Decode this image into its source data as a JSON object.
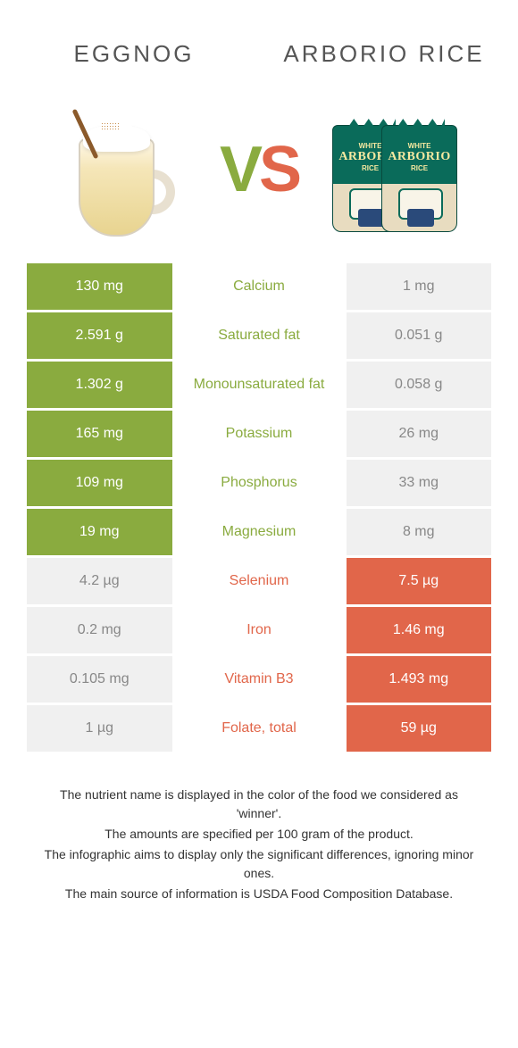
{
  "header": {
    "left_title": "Eggnog",
    "right_title": "Arborio rice",
    "vs_v": "V",
    "vs_s": "S"
  },
  "colors": {
    "left_winner": "#8aab3f",
    "right_winner": "#e1664a",
    "loser_bg": "#f0f0f0",
    "loser_text": "#888888"
  },
  "rice_bag": {
    "line1": "WHITE",
    "line2": "ARBORIO",
    "line3": "RICE"
  },
  "rows": [
    {
      "nutrient": "Calcium",
      "left": "130 mg",
      "right": "1 mg",
      "winner": "left"
    },
    {
      "nutrient": "Saturated fat",
      "left": "2.591 g",
      "right": "0.051 g",
      "winner": "left"
    },
    {
      "nutrient": "Monounsaturated fat",
      "left": "1.302 g",
      "right": "0.058 g",
      "winner": "left"
    },
    {
      "nutrient": "Potassium",
      "left": "165 mg",
      "right": "26 mg",
      "winner": "left"
    },
    {
      "nutrient": "Phosphorus",
      "left": "109 mg",
      "right": "33 mg",
      "winner": "left"
    },
    {
      "nutrient": "Magnesium",
      "left": "19 mg",
      "right": "8 mg",
      "winner": "left"
    },
    {
      "nutrient": "Selenium",
      "left": "4.2 µg",
      "right": "7.5 µg",
      "winner": "right"
    },
    {
      "nutrient": "Iron",
      "left": "0.2 mg",
      "right": "1.46 mg",
      "winner": "right"
    },
    {
      "nutrient": "Vitamin B3",
      "left": "0.105 mg",
      "right": "1.493 mg",
      "winner": "right"
    },
    {
      "nutrient": "Folate, total",
      "left": "1 µg",
      "right": "59 µg",
      "winner": "right"
    }
  ],
  "footnotes": [
    "The nutrient name is displayed in the color of the food we considered as 'winner'.",
    "The amounts are specified per 100 gram of the product.",
    "The infographic aims to display only the significant differences, ignoring minor ones.",
    "The main source of information is USDA Food Composition Database."
  ]
}
